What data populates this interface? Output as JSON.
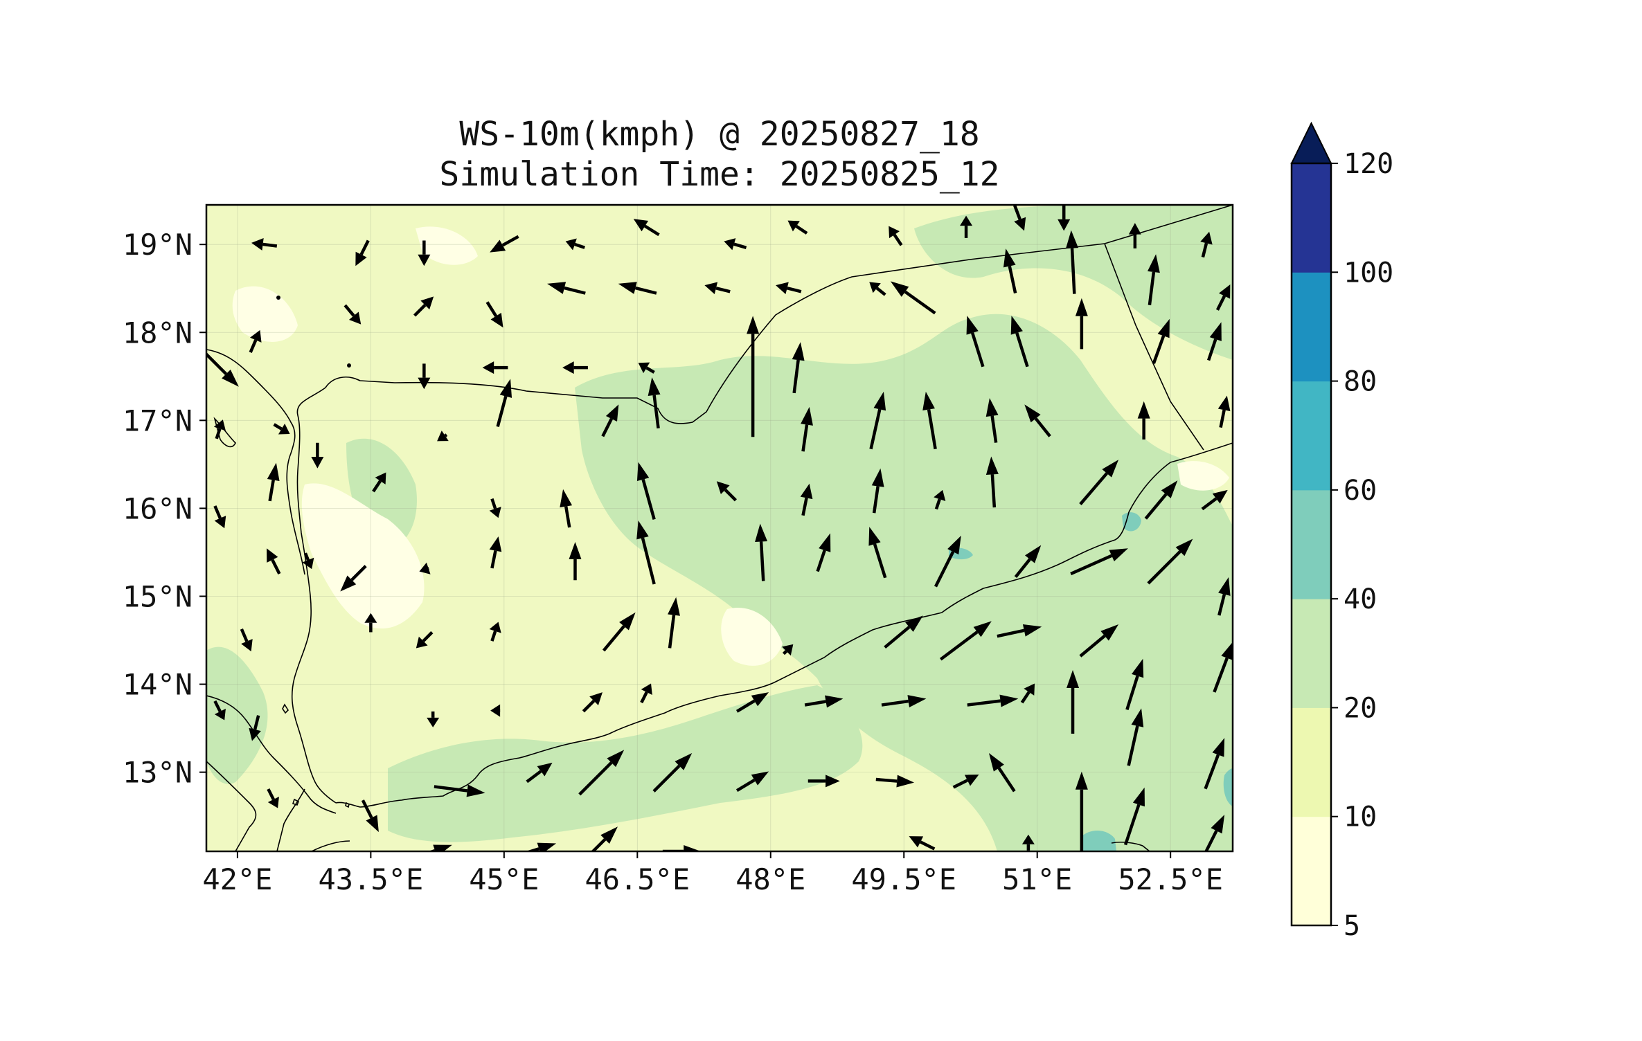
{
  "figure": {
    "title_line1": "WS-10m(kmph) @ 20250827_18",
    "title_line2": "Simulation Time: 20250825_12"
  },
  "map": {
    "lon_range": [
      41.65,
      53.2
    ],
    "lat_range": [
      12.1,
      19.45
    ],
    "x_tick_labels": [
      "42°E",
      "43.5°E",
      "45°E",
      "46.5°E",
      "48°E",
      "49.5°E",
      "51°E",
      "52.5°E"
    ],
    "x_tick_values": [
      42,
      43.5,
      45,
      46.5,
      48,
      49.5,
      51,
      52.5
    ],
    "y_tick_labels": [
      "19°N",
      "18°N",
      "17°N",
      "16°N",
      "15°N",
      "14°N",
      "13°N"
    ],
    "y_tick_values": [
      19,
      18,
      17,
      16,
      15,
      14,
      13
    ],
    "background_fill": "#f0f9c2",
    "land_fill": "#ffffe5",
    "grid": true,
    "vector_color": "#000000"
  },
  "colorbar": {
    "levels": [
      "5",
      "10",
      "20",
      "40",
      "60",
      "80",
      "100",
      "120"
    ],
    "colors": [
      "#ffffd9",
      "#edf8b1",
      "#c7e9b4",
      "#7fcdbb",
      "#41b6c4",
      "#1d91c0",
      "#253494"
    ],
    "extend_color": "#081d58",
    "extend": "max"
  },
  "wind_vectors": [
    {
      "lon": 42.3,
      "lat": 19.0,
      "u": -8,
      "v": 1
    },
    {
      "lon": 43.4,
      "lat": 18.9,
      "u": -4,
      "v": -8
    },
    {
      "lon": 44.1,
      "lat": 18.9,
      "u": 0,
      "v": -8
    },
    {
      "lon": 45.0,
      "lat": 19.0,
      "u": -9,
      "v": -5
    },
    {
      "lon": 45.8,
      "lat": 19.0,
      "u": -6,
      "v": 2
    },
    {
      "lon": 46.6,
      "lat": 19.2,
      "u": -8,
      "v": 5
    },
    {
      "lon": 47.6,
      "lat": 19.0,
      "u": -7,
      "v": 2
    },
    {
      "lon": 48.3,
      "lat": 19.2,
      "u": -6,
      "v": 4
    },
    {
      "lon": 49.4,
      "lat": 19.1,
      "u": -4,
      "v": 6
    },
    {
      "lon": 50.2,
      "lat": 19.2,
      "u": 0,
      "v": 7
    },
    {
      "lon": 50.8,
      "lat": 19.3,
      "u": 3,
      "v": -8
    },
    {
      "lon": 51.3,
      "lat": 19.3,
      "u": 0,
      "v": -8
    },
    {
      "lon": 52.1,
      "lat": 19.1,
      "u": 0,
      "v": 8
    },
    {
      "lon": 52.9,
      "lat": 19.0,
      "u": 2,
      "v": 8
    },
    {
      "lon": 43.3,
      "lat": 18.2,
      "u": 5,
      "v": -6
    },
    {
      "lon": 44.1,
      "lat": 18.3,
      "u": 6,
      "v": 6
    },
    {
      "lon": 44.9,
      "lat": 18.2,
      "u": 5,
      "v": -8
    },
    {
      "lon": 45.7,
      "lat": 18.5,
      "u": -12,
      "v": 3
    },
    {
      "lon": 46.5,
      "lat": 18.5,
      "u": -12,
      "v": 3
    },
    {
      "lon": 47.4,
      "lat": 18.5,
      "u": -8,
      "v": 2
    },
    {
      "lon": 47.8,
      "lat": 17.5,
      "u": 0,
      "v": 38
    },
    {
      "lon": 48.2,
      "lat": 18.5,
      "u": -8,
      "v": 2
    },
    {
      "lon": 48.3,
      "lat": 17.6,
      "u": 2,
      "v": 16
    },
    {
      "lon": 49.2,
      "lat": 18.5,
      "u": -5,
      "v": 4
    },
    {
      "lon": 49.6,
      "lat": 18.4,
      "u": -14,
      "v": 10
    },
    {
      "lon": 50.3,
      "lat": 17.9,
      "u": -5,
      "v": 16
    },
    {
      "lon": 50.8,
      "lat": 17.9,
      "u": -5,
      "v": 16
    },
    {
      "lon": 50.7,
      "lat": 18.7,
      "u": -3,
      "v": 14
    },
    {
      "lon": 51.4,
      "lat": 18.8,
      "u": -1,
      "v": 20
    },
    {
      "lon": 51.5,
      "lat": 18.1,
      "u": 0,
      "v": 16
    },
    {
      "lon": 52.3,
      "lat": 18.6,
      "u": 2,
      "v": 16
    },
    {
      "lon": 52.4,
      "lat": 17.9,
      "u": 5,
      "v": 14
    },
    {
      "lon": 53.1,
      "lat": 18.4,
      "u": 4,
      "v": 8
    },
    {
      "lon": 53.0,
      "lat": 17.9,
      "u": 4,
      "v": 12
    },
    {
      "lon": 53.1,
      "lat": 17.1,
      "u": 2,
      "v": 10
    },
    {
      "lon": 41.8,
      "lat": 17.6,
      "u": 12,
      "v": -12
    },
    {
      "lon": 42.2,
      "lat": 17.9,
      "u": 3,
      "v": 7
    },
    {
      "lon": 42.5,
      "lat": 16.9,
      "u": 5,
      "v": -3
    },
    {
      "lon": 42.4,
      "lat": 16.3,
      "u": 2,
      "v": 12
    },
    {
      "lon": 41.8,
      "lat": 16.9,
      "u": 2,
      "v": 6
    },
    {
      "lon": 41.8,
      "lat": 15.9,
      "u": 3,
      "v": -7
    },
    {
      "lon": 44.1,
      "lat": 17.5,
      "u": 0,
      "v": -8
    },
    {
      "lon": 44.9,
      "lat": 17.6,
      "u": -8,
      "v": 0
    },
    {
      "lon": 45.0,
      "lat": 17.2,
      "u": 4,
      "v": 15
    },
    {
      "lon": 45.8,
      "lat": 17.6,
      "u": -8,
      "v": 0
    },
    {
      "lon": 46.6,
      "lat": 17.6,
      "u": -5,
      "v": 3
    },
    {
      "lon": 46.7,
      "lat": 17.2,
      "u": -2,
      "v": 16
    },
    {
      "lon": 46.2,
      "lat": 17.0,
      "u": 5,
      "v": 10
    },
    {
      "lon": 48.4,
      "lat": 16.9,
      "u": 2,
      "v": 14
    },
    {
      "lon": 49.2,
      "lat": 17.0,
      "u": 4,
      "v": 18
    },
    {
      "lon": 49.8,
      "lat": 17.0,
      "u": -3,
      "v": 18
    },
    {
      "lon": 50.5,
      "lat": 17.0,
      "u": -2,
      "v": 14
    },
    {
      "lon": 51.0,
      "lat": 17.0,
      "u": -8,
      "v": 10
    },
    {
      "lon": 52.2,
      "lat": 17.0,
      "u": 0,
      "v": 12
    },
    {
      "lon": 42.9,
      "lat": 16.6,
      "u": 0,
      "v": -8
    },
    {
      "lon": 43.6,
      "lat": 16.3,
      "u": 4,
      "v": 6
    },
    {
      "lon": 44.3,
      "lat": 16.8,
      "u": -3,
      "v": -2
    },
    {
      "lon": 44.9,
      "lat": 16.0,
      "u": 2,
      "v": -6
    },
    {
      "lon": 45.7,
      "lat": 16.0,
      "u": -2,
      "v": 12
    },
    {
      "lon": 46.6,
      "lat": 16.2,
      "u": -5,
      "v": 18
    },
    {
      "lon": 47.5,
      "lat": 16.2,
      "u": -6,
      "v": 6
    },
    {
      "lon": 48.4,
      "lat": 16.1,
      "u": 2,
      "v": 10
    },
    {
      "lon": 49.2,
      "lat": 16.2,
      "u": 2,
      "v": 14
    },
    {
      "lon": 49.9,
      "lat": 16.1,
      "u": 2,
      "v": 6
    },
    {
      "lon": 50.5,
      "lat": 16.3,
      "u": -1,
      "v": 16
    },
    {
      "lon": 51.7,
      "lat": 16.3,
      "u": 12,
      "v": 14
    },
    {
      "lon": 52.4,
      "lat": 16.1,
      "u": 10,
      "v": 12
    },
    {
      "lon": 53.0,
      "lat": 16.1,
      "u": 8,
      "v": 6
    },
    {
      "lon": 42.4,
      "lat": 15.4,
      "u": -4,
      "v": 8
    },
    {
      "lon": 42.8,
      "lat": 15.4,
      "u": 2,
      "v": -5
    },
    {
      "lon": 43.3,
      "lat": 15.2,
      "u": -8,
      "v": -8
    },
    {
      "lon": 44.1,
      "lat": 15.3,
      "u": -3,
      "v": -1
    },
    {
      "lon": 44.9,
      "lat": 15.5,
      "u": 2,
      "v": 10
    },
    {
      "lon": 45.8,
      "lat": 15.4,
      "u": 0,
      "v": 12
    },
    {
      "lon": 46.6,
      "lat": 15.5,
      "u": -5,
      "v": 20
    },
    {
      "lon": 47.9,
      "lat": 15.5,
      "u": -1,
      "v": 18
    },
    {
      "lon": 48.6,
      "lat": 15.5,
      "u": 4,
      "v": 12
    },
    {
      "lon": 49.2,
      "lat": 15.5,
      "u": -5,
      "v": 16
    },
    {
      "lon": 50.0,
      "lat": 15.4,
      "u": 8,
      "v": 16
    },
    {
      "lon": 50.9,
      "lat": 15.4,
      "u": 8,
      "v": 10
    },
    {
      "lon": 51.7,
      "lat": 15.4,
      "u": 18,
      "v": 8
    },
    {
      "lon": 52.5,
      "lat": 15.4,
      "u": 14,
      "v": 14
    },
    {
      "lon": 53.1,
      "lat": 15.0,
      "u": 3,
      "v": 12
    },
    {
      "lon": 42.1,
      "lat": 14.5,
      "u": 3,
      "v": -7
    },
    {
      "lon": 43.5,
      "lat": 14.7,
      "u": 0,
      "v": 6
    },
    {
      "lon": 44.1,
      "lat": 14.5,
      "u": -5,
      "v": -5
    },
    {
      "lon": 44.9,
      "lat": 14.6,
      "u": 2,
      "v": 6
    },
    {
      "lon": 46.3,
      "lat": 14.6,
      "u": 10,
      "v": 12
    },
    {
      "lon": 46.9,
      "lat": 14.7,
      "u": 2,
      "v": 16
    },
    {
      "lon": 48.2,
      "lat": 14.4,
      "u": 3,
      "v": 3
    },
    {
      "lon": 49.5,
      "lat": 14.6,
      "u": 12,
      "v": 10
    },
    {
      "lon": 50.2,
      "lat": 14.5,
      "u": 16,
      "v": 12
    },
    {
      "lon": 50.8,
      "lat": 14.6,
      "u": 14,
      "v": 3
    },
    {
      "lon": 51.7,
      "lat": 14.5,
      "u": 12,
      "v": 10
    },
    {
      "lon": 51.4,
      "lat": 13.8,
      "u": 0,
      "v": 20
    },
    {
      "lon": 52.1,
      "lat": 14.0,
      "u": 5,
      "v": 16
    },
    {
      "lon": 53.1,
      "lat": 14.2,
      "u": 6,
      "v": 16
    },
    {
      "lon": 42.2,
      "lat": 13.5,
      "u": -2,
      "v": -8
    },
    {
      "lon": 41.8,
      "lat": 13.7,
      "u": 3,
      "v": -6
    },
    {
      "lon": 44.2,
      "lat": 13.6,
      "u": 0,
      "v": -5
    },
    {
      "lon": 44.9,
      "lat": 13.7,
      "u": -3,
      "v": 0
    },
    {
      "lon": 46.0,
      "lat": 13.8,
      "u": 6,
      "v": 6
    },
    {
      "lon": 46.6,
      "lat": 13.9,
      "u": 3,
      "v": 6
    },
    {
      "lon": 47.8,
      "lat": 13.8,
      "u": 10,
      "v": 6
    },
    {
      "lon": 48.6,
      "lat": 13.8,
      "u": 12,
      "v": 2
    },
    {
      "lon": 49.5,
      "lat": 13.8,
      "u": 14,
      "v": 2
    },
    {
      "lon": 50.5,
      "lat": 13.8,
      "u": 16,
      "v": 2
    },
    {
      "lon": 50.9,
      "lat": 13.9,
      "u": 4,
      "v": 6
    },
    {
      "lon": 52.1,
      "lat": 13.4,
      "u": 4,
      "v": 18
    },
    {
      "lon": 53.0,
      "lat": 13.1,
      "u": 6,
      "v": 16
    },
    {
      "lon": 42.4,
      "lat": 12.7,
      "u": 3,
      "v": -6
    },
    {
      "lon": 43.5,
      "lat": 12.5,
      "u": 5,
      "v": -10
    },
    {
      "lon": 44.5,
      "lat": 12.8,
      "u": 16,
      "v": -2
    },
    {
      "lon": 45.4,
      "lat": 13.0,
      "u": 8,
      "v": 6
    },
    {
      "lon": 46.1,
      "lat": 13.0,
      "u": 14,
      "v": 14
    },
    {
      "lon": 46.9,
      "lat": 13.0,
      "u": 12,
      "v": 12
    },
    {
      "lon": 47.8,
      "lat": 12.9,
      "u": 10,
      "v": 6
    },
    {
      "lon": 48.6,
      "lat": 12.9,
      "u": 10,
      "v": 0
    },
    {
      "lon": 49.4,
      "lat": 12.9,
      "u": 12,
      "v": -1
    },
    {
      "lon": 50.2,
      "lat": 12.9,
      "u": 8,
      "v": 4
    },
    {
      "lon": 50.6,
      "lat": 13.0,
      "u": -8,
      "v": 12
    },
    {
      "lon": 51.5,
      "lat": 12.5,
      "u": 0,
      "v": 28
    },
    {
      "lon": 52.1,
      "lat": 12.5,
      "u": 6,
      "v": 18
    },
    {
      "lon": 53.0,
      "lat": 12.3,
      "u": 6,
      "v": 12
    },
    {
      "lon": 44.2,
      "lat": 12.1,
      "u": 12,
      "v": 4
    },
    {
      "lon": 45.3,
      "lat": 12.1,
      "u": 16,
      "v": 5
    },
    {
      "lon": 46.1,
      "lat": 12.2,
      "u": 10,
      "v": 10
    },
    {
      "lon": 47.0,
      "lat": 12.1,
      "u": 12,
      "v": 0
    },
    {
      "lon": 49.7,
      "lat": 12.2,
      "u": -8,
      "v": 4
    },
    {
      "lon": 50.9,
      "lat": 12.2,
      "u": 0,
      "v": 5
    }
  ]
}
